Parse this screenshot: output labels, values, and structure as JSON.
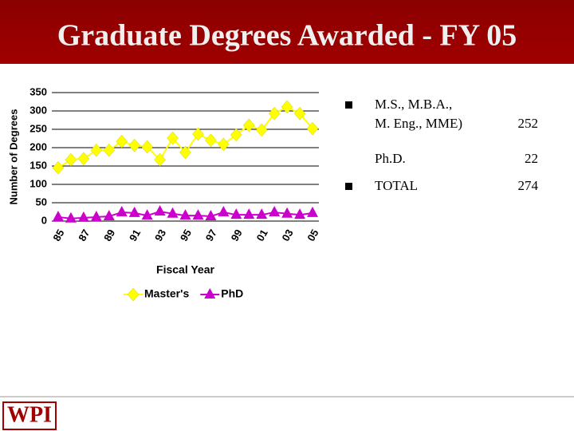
{
  "title": "Graduate Degrees Awarded - FY 05",
  "chart_data": {
    "type": "line",
    "x_label": "Fiscal Year",
    "y_label": "Number of Degrees",
    "categories": [
      "85",
      null,
      "87",
      null,
      "89",
      null,
      "91",
      null,
      "93",
      null,
      "95",
      null,
      "97",
      null,
      "99",
      null,
      "01",
      null,
      "03",
      null,
      "05"
    ],
    "series": [
      {
        "name": "Master's",
        "color": "#ffff00",
        "marker": "diamond",
        "values": [
          145,
          167,
          170,
          193,
          193,
          217,
          206,
          202,
          167,
          226,
          187,
          237,
          220,
          209,
          235,
          261,
          248,
          293,
          311,
          293,
          252
        ]
      },
      {
        "name": "PhD",
        "color": "#cc00cc",
        "marker": "triangle",
        "values": [
          11,
          7,
          9,
          11,
          13,
          24,
          22,
          15,
          26,
          20,
          15,
          15,
          13,
          24,
          17,
          17,
          17,
          24,
          20,
          17,
          22
        ]
      }
    ],
    "ylim": [
      0,
      350
    ],
    "yticks": [
      0,
      50,
      100,
      150,
      200,
      250,
      300,
      350
    ],
    "grid": true,
    "legend": "bottom"
  },
  "summary": {
    "rows": [
      {
        "label": [
          "M.S., M.B.A.,",
          "M. Eng., MME)"
        ],
        "value": 252,
        "bullet": true
      },
      {
        "label": [
          "Ph.D."
        ],
        "value": 22,
        "bullet": false
      },
      {
        "label": [
          "TOTAL"
        ],
        "value": 274,
        "bullet": true
      }
    ]
  },
  "footer": {
    "logo": "WPI"
  }
}
